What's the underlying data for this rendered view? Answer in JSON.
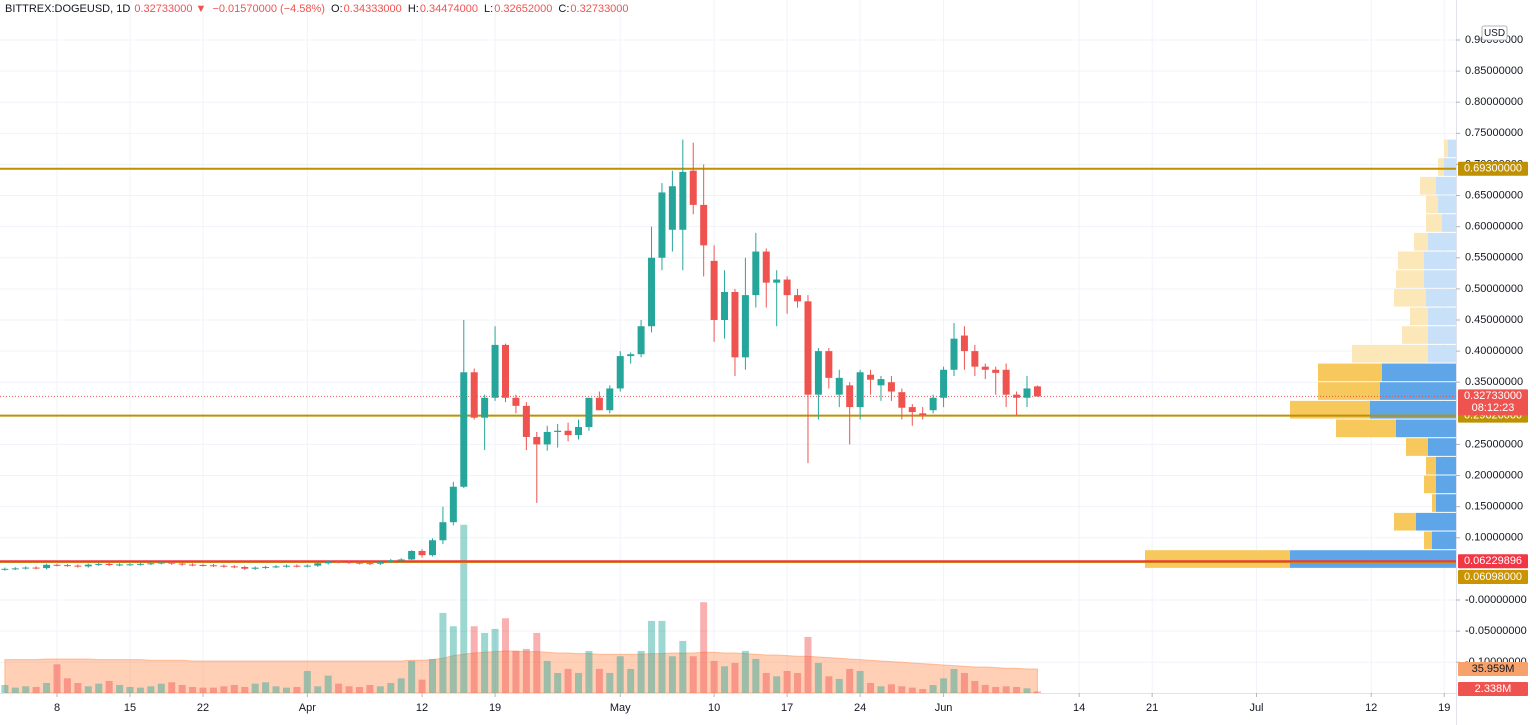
{
  "header": {
    "symbol": "BITTREX:DOGEUSD, 1D",
    "last": "0.32733000",
    "arrow": "▼",
    "change": "−0.01570000 (−4.58%)",
    "o_label": "O:",
    "o": "0.34333000",
    "h_label": "H:",
    "h": "0.34474000",
    "l_label": "L:",
    "l": "0.32652000",
    "c_label": "C:",
    "c": "0.32733000"
  },
  "chart_data": {
    "type": "candlestick",
    "currency": "USD",
    "up_color": "#26a69a",
    "down_color": "#ef5350",
    "grid": true,
    "xlim": [
      -0.465,
      139.13
    ],
    "ylim": [
      -0.1495,
      0.9643
    ],
    "xticks": [
      {
        "value": 5,
        "label": "8"
      },
      {
        "value": 12,
        "label": "15"
      },
      {
        "value": 19,
        "label": "22"
      },
      {
        "value": 29,
        "label": "Apr"
      },
      {
        "value": 40,
        "label": "12"
      },
      {
        "value": 47,
        "label": "19"
      },
      {
        "value": 59,
        "label": "May"
      },
      {
        "value": 68,
        "label": "10"
      },
      {
        "value": 75,
        "label": "17"
      },
      {
        "value": 82,
        "label": "24"
      },
      {
        "value": 90,
        "label": "Jun"
      },
      {
        "value": 103,
        "label": "14"
      },
      {
        "value": 110,
        "label": "21"
      },
      {
        "value": 120,
        "label": "Jul"
      },
      {
        "value": 131,
        "label": "12"
      },
      {
        "value": 138,
        "label": "19"
      }
    ],
    "yticks": [
      {
        "value": 0.9,
        "label": "0.90000000"
      },
      {
        "value": 0.85,
        "label": "0.85000000"
      },
      {
        "value": 0.8,
        "label": "0.80000000"
      },
      {
        "value": 0.75,
        "label": "0.75000000"
      },
      {
        "value": 0.7,
        "label": "0.70000000"
      },
      {
        "value": 0.65,
        "label": "0.65000000"
      },
      {
        "value": 0.6,
        "label": "0.60000000"
      },
      {
        "value": 0.55,
        "label": "0.55000000"
      },
      {
        "value": 0.5,
        "label": "0.50000000"
      },
      {
        "value": 0.45,
        "label": "0.45000000"
      },
      {
        "value": 0.4,
        "label": "0.40000000"
      },
      {
        "value": 0.35,
        "label": "0.35000000"
      },
      {
        "value": 0.25,
        "label": "0.25000000"
      },
      {
        "value": 0.2,
        "label": "0.20000000"
      },
      {
        "value": 0.15,
        "label": "0.15000000"
      },
      {
        "value": 0.1,
        "label": "0.10000000"
      },
      {
        "value": 0,
        "label": "-0.00000000"
      },
      {
        "value": -0.05,
        "label": "-0.05000000"
      },
      {
        "value": -0.1,
        "label": "-0.10000000"
      }
    ],
    "x": [
      0,
      1,
      2,
      3,
      4,
      5,
      6,
      7,
      8,
      9,
      10,
      11,
      12,
      13,
      14,
      15,
      16,
      17,
      18,
      19,
      20,
      21,
      22,
      23,
      24,
      25,
      26,
      27,
      28,
      29,
      30,
      31,
      32,
      33,
      34,
      35,
      36,
      37,
      38,
      39,
      40,
      41,
      42,
      43,
      44,
      45,
      46,
      47,
      48,
      49,
      50,
      51,
      52,
      53,
      54,
      55,
      56,
      57,
      58,
      59,
      60,
      61,
      62,
      63,
      64,
      65,
      66,
      67,
      68,
      69,
      70,
      71,
      72,
      73,
      74,
      75,
      76,
      77,
      78,
      79,
      80,
      81,
      82,
      83,
      84,
      85,
      86,
      87,
      88,
      89,
      90,
      91,
      92,
      93,
      94,
      95,
      96,
      97,
      98,
      99
    ],
    "open": [
      0.049,
      0.0501,
      0.0508,
      0.0521,
      0.0512,
      0.0565,
      0.056,
      0.0552,
      0.054,
      0.0568,
      0.058,
      0.0562,
      0.0571,
      0.0573,
      0.0581,
      0.059,
      0.0602,
      0.0585,
      0.057,
      0.0562,
      0.0558,
      0.0551,
      0.054,
      0.053,
      0.0502,
      0.052,
      0.0531,
      0.054,
      0.0551,
      0.0543,
      0.0552,
      0.059,
      0.0618,
      0.0609,
      0.06,
      0.0592,
      0.0583,
      0.061,
      0.0638,
      0.0651,
      0.0788,
      0.072,
      0.096,
      0.125,
      0.182,
      0.366,
      0.293,
      0.325,
      0.41,
      0.325,
      0.312,
      0.262,
      0.25,
      0.27,
      0.272,
      0.265,
      0.278,
      0.325,
      0.305,
      0.34,
      0.392,
      0.395,
      0.44,
      0.55,
      0.595,
      0.595,
      0.69,
      0.635,
      0.545,
      0.45,
      0.495,
      0.39,
      0.49,
      0.56,
      0.51,
      0.515,
      0.49,
      0.48,
      0.33,
      0.4,
      0.33,
      0.345,
      0.31,
      0.362,
      0.345,
      0.35,
      0.334,
      0.31,
      0.3,
      0.305,
      0.325,
      0.37,
      0.425,
      0.4,
      0.375,
      0.37,
      0.37,
      0.33,
      0.325,
      0.34333
    ],
    "high": [
      0.0521,
      0.0528,
      0.0541,
      0.0541,
      0.0585,
      0.0585,
      0.058,
      0.0572,
      0.0588,
      0.06,
      0.06,
      0.0591,
      0.0593,
      0.0601,
      0.061,
      0.0622,
      0.0622,
      0.0605,
      0.059,
      0.0582,
      0.0578,
      0.0571,
      0.056,
      0.055,
      0.054,
      0.0551,
      0.056,
      0.0571,
      0.0571,
      0.0572,
      0.061,
      0.0638,
      0.0638,
      0.0629,
      0.062,
      0.0612,
      0.063,
      0.0658,
      0.0671,
      0.08,
      0.082,
      0.099,
      0.15,
      0.19,
      0.45,
      0.372,
      0.33,
      0.44,
      0.412,
      0.33,
      0.318,
      0.27,
      0.28,
      0.283,
      0.285,
      0.29,
      0.325,
      0.335,
      0.345,
      0.4,
      0.398,
      0.45,
      0.6,
      0.67,
      0.69,
      0.74,
      0.735,
      0.7,
      0.57,
      0.53,
      0.5,
      0.55,
      0.59,
      0.565,
      0.53,
      0.52,
      0.5,
      0.49,
      0.405,
      0.405,
      0.37,
      0.35,
      0.37,
      0.37,
      0.36,
      0.36,
      0.34,
      0.315,
      0.31,
      0.33,
      0.375,
      0.445,
      0.44,
      0.41,
      0.38,
      0.375,
      0.38,
      0.335,
      0.36,
      0.34474
    ],
    "low": [
      0.047,
      0.0481,
      0.0488,
      0.0492,
      0.0492,
      0.054,
      0.0532,
      0.052,
      0.052,
      0.0548,
      0.0542,
      0.0542,
      0.0551,
      0.0553,
      0.0561,
      0.057,
      0.0565,
      0.055,
      0.0542,
      0.0538,
      0.0531,
      0.052,
      0.051,
      0.0482,
      0.0482,
      0.05,
      0.0511,
      0.052,
      0.0523,
      0.0523,
      0.0532,
      0.057,
      0.0589,
      0.058,
      0.0572,
      0.0563,
      0.0563,
      0.059,
      0.0618,
      0.064,
      0.068,
      0.07,
      0.09,
      0.12,
      0.18,
      0.29,
      0.241,
      0.32,
      0.318,
      0.3,
      0.241,
      0.156,
      0.24,
      0.245,
      0.255,
      0.258,
      0.272,
      0.305,
      0.3,
      0.335,
      0.38,
      0.39,
      0.43,
      0.53,
      0.56,
      0.53,
      0.62,
      0.52,
      0.415,
      0.42,
      0.36,
      0.37,
      0.47,
      0.47,
      0.44,
      0.46,
      0.47,
      0.22,
      0.29,
      0.34,
      0.31,
      0.25,
      0.29,
      0.33,
      0.32,
      0.32,
      0.29,
      0.28,
      0.29,
      0.3,
      0.31,
      0.36,
      0.37,
      0.36,
      0.355,
      0.33,
      0.31,
      0.297,
      0.31,
      0.32652
    ],
    "close": [
      0.0501,
      0.0508,
      0.0521,
      0.0512,
      0.0565,
      0.056,
      0.0552,
      0.054,
      0.0568,
      0.058,
      0.0562,
      0.0571,
      0.0573,
      0.0581,
      0.059,
      0.0602,
      0.0585,
      0.057,
      0.0562,
      0.0558,
      0.0551,
      0.054,
      0.053,
      0.0502,
      0.052,
      0.0531,
      0.054,
      0.0551,
      0.0543,
      0.0552,
      0.059,
      0.0618,
      0.0609,
      0.06,
      0.0592,
      0.0583,
      0.061,
      0.0638,
      0.0651,
      0.0788,
      0.072,
      0.096,
      0.125,
      0.182,
      0.366,
      0.293,
      0.325,
      0.41,
      0.325,
      0.312,
      0.262,
      0.25,
      0.27,
      0.272,
      0.265,
      0.278,
      0.325,
      0.305,
      0.34,
      0.392,
      0.395,
      0.44,
      0.55,
      0.655,
      0.665,
      0.688,
      0.635,
      0.57,
      0.45,
      0.495,
      0.39,
      0.49,
      0.56,
      0.51,
      0.515,
      0.49,
      0.48,
      0.33,
      0.4,
      0.357,
      0.357,
      0.31,
      0.366,
      0.354,
      0.355,
      0.335,
      0.309,
      0.302,
      0.297,
      0.325,
      0.37,
      0.42,
      0.4,
      0.375,
      0.37,
      0.365,
      0.33,
      0.325,
      0.34,
      0.32733
    ],
    "volume": [
      12,
      8,
      10,
      9,
      15,
      43,
      22,
      15,
      10,
      14,
      18,
      12,
      9,
      8,
      10,
      14,
      16,
      12,
      9,
      8,
      8,
      10,
      12,
      9,
      14,
      16,
      10,
      8,
      9,
      33,
      10,
      26,
      14,
      10,
      9,
      12,
      10,
      15,
      22,
      48,
      20,
      51,
      120,
      100,
      252,
      100,
      90,
      96,
      112,
      63,
      66,
      90,
      48,
      30,
      36,
      30,
      63,
      36,
      30,
      55,
      36,
      63,
      108,
      108,
      55,
      78,
      55,
      136,
      48,
      40,
      45,
      63,
      51,
      30,
      25,
      33,
      30,
      84,
      45,
      25,
      21,
      36,
      33,
      15,
      10,
      13,
      10,
      8,
      6,
      12,
      22,
      36,
      30,
      18,
      12,
      9,
      10,
      9,
      7,
      2.338
    ],
    "volume_ma": [
      50,
      50,
      50,
      50,
      51,
      51,
      51,
      51,
      51,
      50,
      50,
      50,
      50,
      50,
      49,
      49,
      49,
      49,
      48,
      48,
      48,
      48,
      48,
      48,
      48,
      48,
      48,
      48,
      48,
      48,
      48,
      48,
      48,
      48,
      48,
      48,
      48,
      48,
      48,
      49,
      49,
      50,
      52,
      56,
      58,
      60,
      61,
      62,
      63,
      63,
      62,
      62,
      61,
      60,
      60,
      59,
      59,
      58,
      58,
      58,
      58,
      58,
      59,
      59,
      60,
      60,
      60,
      61,
      61,
      60,
      60,
      59,
      58,
      57,
      57,
      56,
      55,
      55,
      54,
      53,
      52,
      51,
      50,
      49,
      48,
      47,
      46,
      45,
      44,
      43,
      42,
      41,
      40,
      39,
      39,
      38,
      37,
      37,
      36,
      35.959
    ],
    "volume_label": "2.338M",
    "volume_ma_label": "35.959M",
    "last_price_label": "0.32733000",
    "countdown": "08:12:23",
    "lines": [
      {
        "value": 0.693,
        "label": "0.69300000",
        "color": "#bf9000"
      },
      {
        "value": 0.29626,
        "label": "0.29626000",
        "color": "#bf9000"
      },
      {
        "value": 0.06098,
        "label": "0.06098000",
        "color": "#c99400"
      },
      {
        "value": 0.06229896,
        "label": "0.06229896",
        "color": "#f23645"
      }
    ],
    "volume_profile": {
      "bins": [
        0.05,
        0.08,
        0.11,
        0.14,
        0.17,
        0.2,
        0.23,
        0.26,
        0.29,
        0.32,
        0.35,
        0.38,
        0.41,
        0.44,
        0.47,
        0.5,
        0.53,
        0.56,
        0.59,
        0.62,
        0.65,
        0.68,
        0.71,
        0.74
      ],
      "up": [
        166,
        24,
        40,
        20,
        20,
        20,
        28,
        60,
        86,
        76,
        74,
        28,
        28,
        28,
        30,
        32,
        32,
        28,
        14,
        18,
        20,
        12,
        8
      ],
      "down": [
        145,
        8,
        22,
        4,
        12,
        10,
        22,
        60,
        80,
        62,
        64,
        76,
        26,
        18,
        32,
        28,
        26,
        14,
        16,
        12,
        16,
        6,
        4
      ],
      "value_area": [
        0.05,
        0.38
      ]
    }
  }
}
